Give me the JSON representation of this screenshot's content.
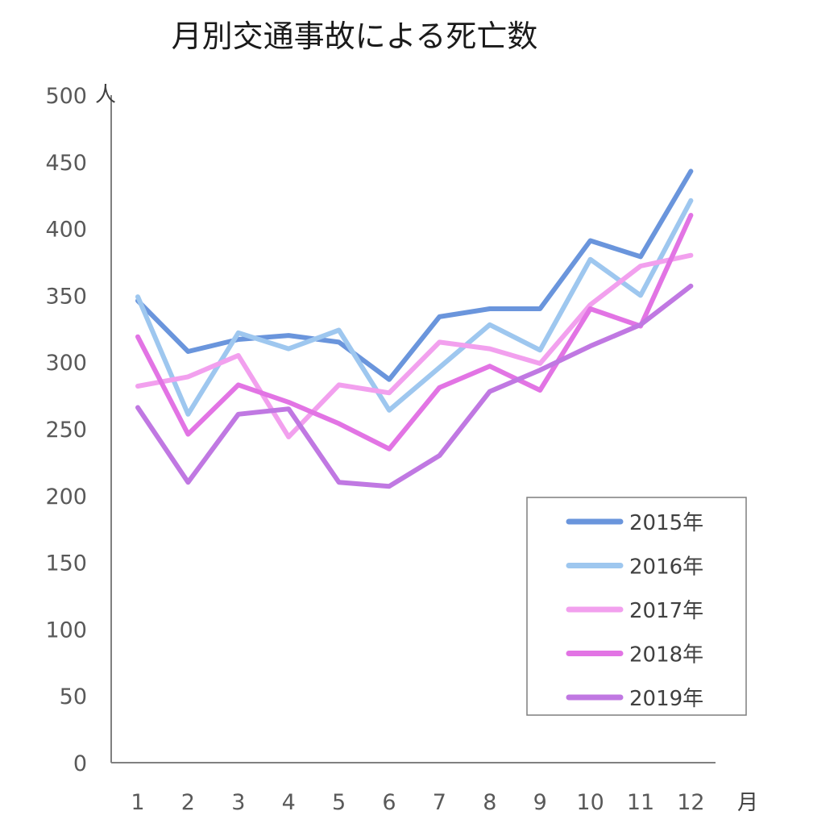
{
  "chart_data": {
    "type": "line",
    "title": "月別交通事故による死亡数",
    "y_unit": "人",
    "x_unit": "月",
    "ylim": [
      0,
      500
    ],
    "y_ticks": [
      0,
      50,
      100,
      150,
      200,
      250,
      300,
      350,
      400,
      450,
      500
    ],
    "y_tick_labels": [
      "0",
      "50",
      "100",
      "150",
      "200",
      "250",
      "300",
      "350",
      "400",
      "450",
      "500"
    ],
    "x": [
      "1",
      "2",
      "3",
      "4",
      "5",
      "6",
      "7",
      "8",
      "9",
      "10",
      "11",
      "12"
    ],
    "grid": false,
    "legend_position": "bottom-right",
    "series": [
      {
        "name": "2015年",
        "color": "#6a95dc",
        "values": [
          346,
          308,
          317,
          320,
          315,
          287,
          334,
          340,
          340,
          391,
          379,
          443
        ]
      },
      {
        "name": "2016年",
        "color": "#9ec7ef",
        "values": [
          349,
          261,
          322,
          310,
          324,
          264,
          296,
          328,
          309,
          377,
          350,
          421
        ]
      },
      {
        "name": "2017年",
        "color": "#f2a0ee",
        "values": [
          282,
          289,
          305,
          244,
          283,
          277,
          315,
          310,
          299,
          343,
          372,
          380
        ]
      },
      {
        "name": "2018年",
        "color": "#e274e4",
        "values": [
          319,
          246,
          283,
          270,
          254,
          235,
          281,
          297,
          279,
          340,
          327,
          410
        ]
      },
      {
        "name": "2019年",
        "color": "#c078e2",
        "values": [
          266,
          210,
          261,
          265,
          210,
          207,
          230,
          278,
          294,
          312,
          328,
          357
        ]
      }
    ]
  }
}
